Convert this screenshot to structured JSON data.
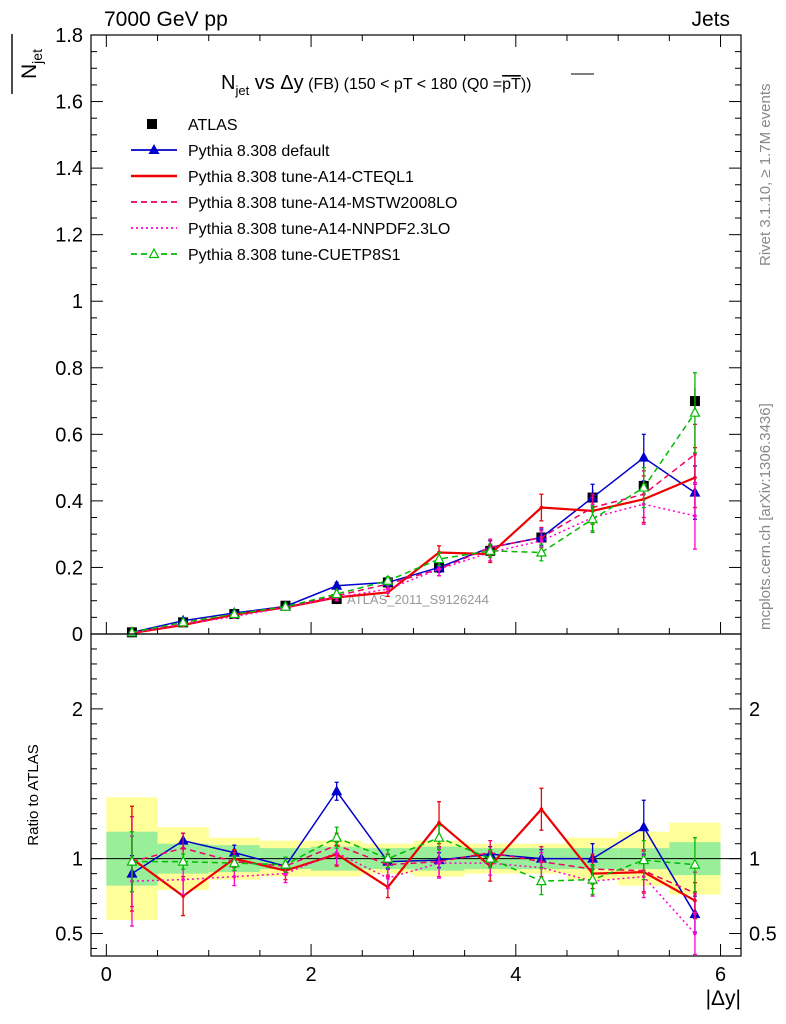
{
  "header": {
    "left": "7000 GeV pp",
    "right": "Jets"
  },
  "side": {
    "rivet": "Rivet 3.1.10, ≥ 1.7M events",
    "mcplots": "mcplots.cern.ch [arXiv:1306.3436]"
  },
  "chart_data": [
    {
      "type": "line",
      "panel": "main",
      "title_parts": {
        "n": "N",
        "sub": "jet",
        "rest": " vs Δy",
        "fb": " (FB) ",
        "range": "(150 < pT < 180 (Q0 =",
        "ptbar": "pT",
        "close": "))"
      },
      "ylabel_parts": {
        "n": "N",
        "sub": "jet"
      },
      "watermark": "ATLAS_2011_S9126244",
      "ylim": [
        0,
        1.8
      ],
      "xlim": [
        -0.15,
        6.2
      ],
      "yticks": [
        "0",
        "0.2",
        "0.4",
        "0.6",
        "0.8",
        "1",
        "1.2",
        "1.4",
        "1.6",
        "1.8"
      ],
      "legend_position": "top-left",
      "x": [
        0.25,
        0.75,
        1.25,
        1.75,
        2.25,
        2.75,
        3.25,
        3.75,
        4.25,
        4.75,
        5.25,
        5.75
      ],
      "data": {
        "name": "ATLAS",
        "values": [
          0.005,
          0.035,
          0.06,
          0.085,
          0.105,
          0.155,
          0.2,
          0.25,
          0.29,
          0.41,
          0.445,
          0.7
        ],
        "errors": [
          0.003,
          0.004,
          0.005,
          0.006,
          0.008,
          0.01,
          0.015,
          0.018,
          0.02,
          0.025,
          0.03,
          0.04
        ]
      },
      "series": [
        {
          "name": "Pythia 8.308 default",
          "color": "#0000cc",
          "style": "solid",
          "marker": "triangle-filled",
          "values": [
            0.005,
            0.04,
            0.063,
            0.083,
            0.145,
            0.155,
            0.2,
            0.26,
            0.29,
            0.41,
            0.53,
            0.425
          ],
          "errors": [
            0.002,
            0.004,
            0.005,
            0.006,
            0.01,
            0.01,
            0.015,
            0.02,
            0.025,
            0.04,
            0.07,
            0.08
          ]
        },
        {
          "name": "Pythia 8.308 tune-A14-CTEQL1",
          "color": "#ee0000",
          "style": "solid",
          "marker": "none",
          "values": [
            0.003,
            0.027,
            0.058,
            0.08,
            0.11,
            0.125,
            0.245,
            0.24,
            0.38,
            0.37,
            0.405,
            0.47
          ],
          "errors": [
            0.001,
            0.004,
            0.005,
            0.006,
            0.01,
            0.012,
            0.02,
            0.025,
            0.04,
            0.04,
            0.07,
            0.09
          ]
        },
        {
          "name": "Pythia 8.308 tune-A14-MSTW2008LO",
          "color": "#ee0066",
          "style": "dashed",
          "marker": "none",
          "values": [
            0.004,
            0.035,
            0.06,
            0.082,
            0.115,
            0.15,
            0.195,
            0.26,
            0.29,
            0.38,
            0.42,
            0.54
          ],
          "errors": [
            0.001,
            0.004,
            0.005,
            0.006,
            0.01,
            0.012,
            0.02,
            0.025,
            0.03,
            0.04,
            0.07,
            0.09
          ]
        },
        {
          "name": "Pythia 8.308 tune-A14-NNPDF2.3LO",
          "color": "#ff00cc",
          "style": "dotted",
          "marker": "none",
          "values": [
            0.003,
            0.03,
            0.052,
            0.08,
            0.11,
            0.135,
            0.195,
            0.245,
            0.28,
            0.35,
            0.39,
            0.355
          ],
          "errors": [
            0.001,
            0.004,
            0.005,
            0.006,
            0.01,
            0.012,
            0.02,
            0.025,
            0.03,
            0.04,
            0.06,
            0.1
          ]
        },
        {
          "name": "Pythia 8.308 tune-CUETP8S1",
          "color": "#00bb00",
          "style": "dashed",
          "marker": "triangle-open",
          "values": [
            0.005,
            0.035,
            0.06,
            0.082,
            0.12,
            0.16,
            0.225,
            0.25,
            0.245,
            0.345,
            0.44,
            0.665
          ],
          "errors": [
            0.002,
            0.004,
            0.005,
            0.006,
            0.01,
            0.012,
            0.02,
            0.02,
            0.025,
            0.04,
            0.06,
            0.12
          ]
        }
      ]
    },
    {
      "type": "line",
      "panel": "ratio",
      "ylabel": "Ratio to ATLAS",
      "xlabel": "|Δy|",
      "ylim": [
        0.35,
        2.5
      ],
      "yticks": [
        "0.5",
        "1",
        "2"
      ],
      "xticks": [
        "0",
        "2",
        "4",
        "6"
      ],
      "reference": 1,
      "x": [
        0.25,
        0.75,
        1.25,
        1.75,
        2.25,
        2.75,
        3.25,
        3.75,
        4.25,
        4.75,
        5.25,
        5.75
      ],
      "data_band_inner": [
        0.18,
        0.1,
        0.09,
        0.07,
        0.08,
        0.07,
        0.08,
        0.07,
        0.07,
        0.07,
        0.07,
        0.11
      ],
      "data_band_outer": [
        0.41,
        0.21,
        0.14,
        0.12,
        0.12,
        0.1,
        0.12,
        0.1,
        0.1,
        0.14,
        0.18,
        0.24
      ],
      "band_colors": {
        "inner": "#99ee99",
        "outer": "#ffff99"
      },
      "series": [
        {
          "name": "Pythia 8.308 default",
          "color": "#0000cc",
          "style": "solid",
          "marker": "triangle-filled",
          "values": [
            0.9,
            1.12,
            1.04,
            0.95,
            1.45,
            0.98,
            0.99,
            1.03,
            1.0,
            1.0,
            1.21,
            0.63
          ],
          "errors": [
            0.12,
            0.05,
            0.05,
            0.05,
            0.06,
            0.05,
            0.05,
            0.05,
            0.06,
            0.1,
            0.18,
            0.12
          ]
        },
        {
          "name": "Pythia 8.308 tune-A14-CTEQL1",
          "color": "#ee0000",
          "style": "solid",
          "marker": "none",
          "values": [
            1.0,
            0.75,
            1.0,
            0.92,
            1.03,
            0.81,
            1.24,
            0.95,
            1.33,
            0.9,
            0.91,
            0.72
          ],
          "errors": [
            0.35,
            0.13,
            0.06,
            0.06,
            0.08,
            0.07,
            0.14,
            0.1,
            0.14,
            0.1,
            0.14,
            0.12
          ]
        },
        {
          "name": "Pythia 8.308 tune-A14-MSTW2008LO",
          "color": "#ee0066",
          "style": "dashed",
          "marker": "none",
          "values": [
            0.98,
            1.07,
            0.98,
            0.95,
            1.09,
            0.96,
            0.98,
            1.04,
            0.98,
            0.93,
            0.92,
            0.77
          ],
          "errors": [
            0.3,
            0.1,
            0.06,
            0.06,
            0.08,
            0.07,
            0.1,
            0.08,
            0.1,
            0.1,
            0.14,
            0.14
          ]
        },
        {
          "name": "Pythia 8.308 tune-A14-NNPDF2.3LO",
          "color": "#ff00cc",
          "style": "dotted",
          "marker": "none",
          "values": [
            0.85,
            0.86,
            0.88,
            0.9,
            1.04,
            0.87,
            0.97,
            0.97,
            0.94,
            0.85,
            0.88,
            0.5
          ],
          "errors": [
            0.3,
            0.1,
            0.06,
            0.06,
            0.08,
            0.07,
            0.1,
            0.08,
            0.1,
            0.1,
            0.14,
            0.14
          ]
        },
        {
          "name": "Pythia 8.308 tune-CUETP8S1",
          "color": "#00bb00",
          "style": "dashed",
          "marker": "triangle-open",
          "values": [
            0.98,
            0.98,
            0.97,
            0.96,
            1.14,
            1.0,
            1.14,
            1.0,
            0.85,
            0.86,
            0.99,
            0.96
          ],
          "errors": [
            0.2,
            0.05,
            0.05,
            0.05,
            0.07,
            0.06,
            0.08,
            0.06,
            0.09,
            0.1,
            0.13,
            0.18
          ]
        }
      ]
    }
  ]
}
